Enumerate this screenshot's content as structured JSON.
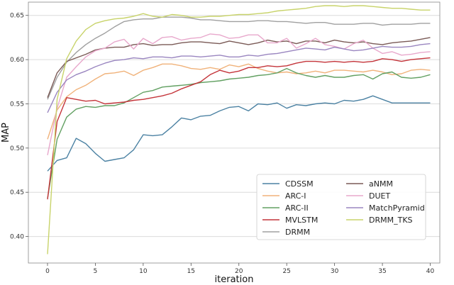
{
  "chart_data": {
    "type": "line",
    "title": "",
    "xlabel": "iteration",
    "ylabel": "MAP",
    "xlim": [
      -2,
      41
    ],
    "ylim": [
      0.37,
      0.665
    ],
    "xticks": [
      0,
      5,
      10,
      15,
      20,
      25,
      30,
      35,
      40
    ],
    "yticks": [
      0.4,
      0.45,
      0.5,
      0.55,
      0.6,
      0.65
    ],
    "grid": "horizontal",
    "legend": "lower-right",
    "series": [
      {
        "name": "CDSSM",
        "color": "#4c82a3",
        "x": [
          0,
          1,
          2,
          3,
          4,
          5,
          6,
          7,
          8,
          9,
          10,
          11,
          12,
          13,
          14,
          15,
          16,
          17,
          18,
          19,
          20,
          21,
          22,
          23,
          24,
          25,
          26,
          27,
          28,
          29,
          30,
          31,
          32,
          33,
          34,
          35,
          36,
          37,
          38,
          39,
          40
        ],
        "y": [
          0.474,
          0.486,
          0.489,
          0.511,
          0.505,
          0.494,
          0.485,
          0.487,
          0.489,
          0.498,
          0.515,
          0.514,
          0.515,
          0.524,
          0.534,
          0.532,
          0.536,
          0.537,
          0.542,
          0.546,
          0.547,
          0.542,
          0.55,
          0.549,
          0.551,
          0.545,
          0.549,
          0.548,
          0.55,
          0.551,
          0.55,
          0.554,
          0.553,
          0.555,
          0.559,
          0.555,
          0.551,
          0.551,
          0.551,
          0.551,
          0.551
        ]
      },
      {
        "name": "ARC-I",
        "color": "#f0b27a",
        "x": [
          0,
          1,
          2,
          3,
          4,
          5,
          6,
          7,
          8,
          9,
          10,
          11,
          12,
          13,
          14,
          15,
          16,
          17,
          18,
          19,
          20,
          21,
          22,
          23,
          24,
          25,
          26,
          27,
          28,
          29,
          30,
          31,
          32,
          33,
          34,
          35,
          36,
          37,
          38,
          39,
          40
        ],
        "y": [
          0.51,
          0.543,
          0.558,
          0.566,
          0.571,
          0.578,
          0.584,
          0.585,
          0.587,
          0.582,
          0.588,
          0.591,
          0.595,
          0.595,
          0.593,
          0.59,
          0.589,
          0.591,
          0.589,
          0.594,
          0.592,
          0.595,
          0.59,
          0.587,
          0.585,
          0.586,
          0.584,
          0.585,
          0.587,
          0.585,
          0.588,
          0.588,
          0.587,
          0.586,
          0.588,
          0.586,
          0.583,
          0.584,
          0.588,
          0.589,
          0.588
        ]
      },
      {
        "name": "ARC-II",
        "color": "#62a062",
        "x": [
          0,
          1,
          2,
          3,
          4,
          5,
          6,
          7,
          8,
          9,
          10,
          11,
          12,
          13,
          14,
          15,
          16,
          17,
          18,
          19,
          20,
          21,
          22,
          23,
          24,
          25,
          26,
          27,
          28,
          29,
          30,
          31,
          32,
          33,
          34,
          35,
          36,
          37,
          38,
          39,
          40
        ],
        "y": [
          0.443,
          0.51,
          0.535,
          0.544,
          0.547,
          0.546,
          0.548,
          0.548,
          0.551,
          0.557,
          0.563,
          0.565,
          0.569,
          0.57,
          0.571,
          0.572,
          0.574,
          0.575,
          0.576,
          0.578,
          0.579,
          0.58,
          0.582,
          0.583,
          0.585,
          0.59,
          0.585,
          0.582,
          0.58,
          0.582,
          0.58,
          0.58,
          0.582,
          0.583,
          0.578,
          0.584,
          0.586,
          0.58,
          0.579,
          0.58,
          0.583
        ]
      },
      {
        "name": "MVLSTM",
        "color": "#c4343a",
        "x": [
          0,
          1,
          2,
          3,
          4,
          5,
          6,
          7,
          8,
          9,
          10,
          11,
          12,
          13,
          14,
          15,
          16,
          17,
          18,
          19,
          20,
          21,
          22,
          23,
          24,
          25,
          26,
          27,
          28,
          29,
          30,
          31,
          32,
          33,
          34,
          35,
          36,
          37,
          38,
          39,
          40
        ],
        "y": [
          0.442,
          0.53,
          0.557,
          0.555,
          0.553,
          0.554,
          0.55,
          0.551,
          0.552,
          0.554,
          0.555,
          0.557,
          0.559,
          0.562,
          0.567,
          0.571,
          0.575,
          0.583,
          0.588,
          0.585,
          0.587,
          0.591,
          0.591,
          0.593,
          0.592,
          0.593,
          0.596,
          0.598,
          0.598,
          0.597,
          0.598,
          0.597,
          0.598,
          0.597,
          0.598,
          0.601,
          0.6,
          0.598,
          0.6,
          0.601,
          0.602
        ]
      },
      {
        "name": "DRMM",
        "color": "#a0a0a0",
        "x": [
          0,
          1,
          2,
          3,
          4,
          5,
          6,
          7,
          8,
          9,
          10,
          11,
          12,
          13,
          14,
          15,
          16,
          17,
          18,
          19,
          20,
          21,
          22,
          23,
          24,
          25,
          26,
          27,
          28,
          29,
          30,
          31,
          32,
          33,
          34,
          35,
          36,
          37,
          38,
          39,
          40
        ],
        "y": [
          0.555,
          0.58,
          0.597,
          0.608,
          0.617,
          0.624,
          0.63,
          0.637,
          0.643,
          0.645,
          0.646,
          0.646,
          0.648,
          0.648,
          0.648,
          0.647,
          0.645,
          0.645,
          0.644,
          0.643,
          0.643,
          0.643,
          0.644,
          0.644,
          0.643,
          0.643,
          0.642,
          0.641,
          0.642,
          0.642,
          0.64,
          0.64,
          0.64,
          0.641,
          0.641,
          0.639,
          0.64,
          0.64,
          0.64,
          0.641,
          0.641
        ]
      },
      {
        "name": "aNMM",
        "color": "#7a5a56",
        "x": [
          0,
          1,
          2,
          3,
          4,
          5,
          6,
          7,
          8,
          9,
          10,
          11,
          12,
          13,
          14,
          15,
          16,
          17,
          18,
          19,
          20,
          21,
          22,
          23,
          24,
          25,
          26,
          27,
          28,
          29,
          30,
          31,
          32,
          33,
          34,
          35,
          36,
          37,
          38,
          39,
          40
        ],
        "y": [
          0.557,
          0.585,
          0.598,
          0.602,
          0.606,
          0.611,
          0.613,
          0.614,
          0.614,
          0.617,
          0.618,
          0.616,
          0.617,
          0.617,
          0.619,
          0.62,
          0.62,
          0.619,
          0.618,
          0.621,
          0.619,
          0.617,
          0.619,
          0.622,
          0.62,
          0.621,
          0.618,
          0.621,
          0.621,
          0.619,
          0.622,
          0.62,
          0.619,
          0.62,
          0.618,
          0.617,
          0.619,
          0.62,
          0.621,
          0.623,
          0.625
        ]
      },
      {
        "name": "DUET",
        "color": "#e8a8cc",
        "x": [
          0,
          1,
          2,
          3,
          4,
          5,
          6,
          7,
          8,
          9,
          10,
          11,
          12,
          13,
          14,
          15,
          16,
          17,
          18,
          19,
          20,
          21,
          22,
          23,
          24,
          25,
          26,
          27,
          28,
          29,
          30,
          31,
          32,
          33,
          34,
          35,
          36,
          37,
          38,
          39,
          40
        ],
        "y": [
          0.492,
          0.545,
          0.58,
          0.592,
          0.603,
          0.61,
          0.613,
          0.62,
          0.623,
          0.612,
          0.624,
          0.618,
          0.625,
          0.626,
          0.622,
          0.624,
          0.625,
          0.629,
          0.628,
          0.624,
          0.625,
          0.628,
          0.628,
          0.619,
          0.619,
          0.624,
          0.613,
          0.618,
          0.624,
          0.617,
          0.615,
          0.612,
          0.618,
          0.622,
          0.613,
          0.607,
          0.609,
          0.605,
          0.606,
          0.608,
          0.609
        ]
      },
      {
        "name": "MatchPyramid",
        "color": "#9a86c0",
        "x": [
          0,
          1,
          2,
          3,
          4,
          5,
          6,
          7,
          8,
          9,
          10,
          11,
          12,
          13,
          14,
          15,
          16,
          17,
          18,
          19,
          20,
          21,
          22,
          23,
          24,
          25,
          26,
          27,
          28,
          29,
          30,
          31,
          32,
          33,
          34,
          35,
          36,
          37,
          38,
          39,
          40
        ],
        "y": [
          0.54,
          0.563,
          0.577,
          0.583,
          0.587,
          0.592,
          0.596,
          0.599,
          0.6,
          0.602,
          0.601,
          0.603,
          0.603,
          0.602,
          0.604,
          0.604,
          0.603,
          0.604,
          0.605,
          0.603,
          0.603,
          0.605,
          0.604,
          0.606,
          0.607,
          0.609,
          0.611,
          0.613,
          0.612,
          0.611,
          0.614,
          0.612,
          0.61,
          0.611,
          0.613,
          0.615,
          0.614,
          0.614,
          0.615,
          0.617,
          0.618
        ]
      },
      {
        "name": "DRMM_TKS",
        "color": "#c8d36a",
        "x": [
          0,
          1,
          2,
          3,
          4,
          5,
          6,
          7,
          8,
          9,
          10,
          11,
          12,
          13,
          14,
          15,
          16,
          17,
          18,
          19,
          20,
          21,
          22,
          23,
          24,
          25,
          26,
          27,
          28,
          29,
          30,
          31,
          32,
          33,
          34,
          35,
          36,
          37,
          38,
          39,
          40
        ],
        "y": [
          0.38,
          0.555,
          0.601,
          0.621,
          0.634,
          0.641,
          0.644,
          0.646,
          0.647,
          0.649,
          0.652,
          0.649,
          0.648,
          0.651,
          0.65,
          0.648,
          0.648,
          0.649,
          0.649,
          0.65,
          0.651,
          0.651,
          0.652,
          0.653,
          0.655,
          0.656,
          0.657,
          0.658,
          0.66,
          0.661,
          0.661,
          0.66,
          0.661,
          0.661,
          0.66,
          0.659,
          0.658,
          0.658,
          0.657,
          0.656,
          0.656
        ]
      }
    ]
  }
}
